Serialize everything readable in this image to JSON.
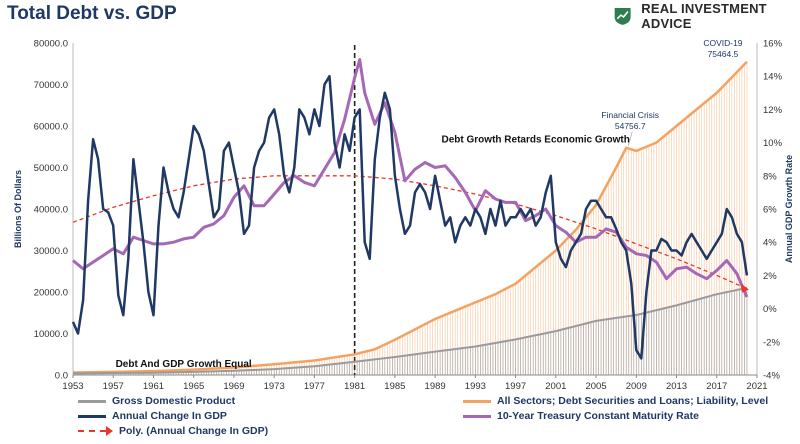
{
  "title": "Total Debt vs. GDP",
  "brand": {
    "name": "REAL INVESTMENT ADVICE",
    "logo_icon": "shield-chart-icon",
    "logo_color": "#2e7d4f"
  },
  "colors": {
    "gdp": "#9a9a9a",
    "debt": "#f4a261",
    "gdp_growth": "#1f3864",
    "treasury": "#a568b4",
    "poly": "#e8382a"
  },
  "chart_data": {
    "type": "area",
    "title": "Total Debt vs. GDP",
    "ylabel": "Billions Of Dollars",
    "ylabel_right": "Annual GDP Growth Rate",
    "xlim": [
      1953,
      2021
    ],
    "ylim": [
      0,
      80000
    ],
    "ylim_right": [
      -4,
      16
    ],
    "x_ticks": [
      "1953",
      "1957",
      "1961",
      "1965",
      "1969",
      "1973",
      "1977",
      "1981",
      "1985",
      "1989",
      "1993",
      "1997",
      "2001",
      "2005",
      "2009",
      "2013",
      "2017",
      "2021"
    ],
    "y_ticks": [
      "0.0",
      "10000.0",
      "20000.0",
      "30000.0",
      "40000.0",
      "50000.0",
      "60000.0",
      "70000.0",
      "80000.0"
    ],
    "y_ticks_right": [
      "-4%",
      "-2%",
      "0%",
      "2%",
      "4%",
      "6%",
      "8%",
      "10%",
      "12%",
      "14%",
      "16%"
    ],
    "series": [
      {
        "name": "Gross Domestic Product",
        "axis": "left",
        "style": "area",
        "x": [
          1953,
          1957,
          1961,
          1965,
          1969,
          1973,
          1977,
          1981,
          1985,
          1989,
          1993,
          1997,
          2001,
          2005,
          2009,
          2013,
          2017,
          2020
        ],
        "values": [
          390,
          475,
          545,
          740,
          1020,
          1430,
          2090,
          3210,
          4340,
          5640,
          6860,
          8580,
          10580,
          13040,
          14450,
          16780,
          19480,
          21000
        ]
      },
      {
        "name": "All Sectors; Debt Securities and Loans; Liability, Level",
        "axis": "left",
        "style": "area",
        "x": [
          1953,
          1957,
          1961,
          1965,
          1969,
          1973,
          1977,
          1981,
          1983,
          1985,
          1987,
          1989,
          1991,
          1993,
          1995,
          1997,
          1999,
          2001,
          2003,
          2005,
          2007,
          2008,
          2009,
          2011,
          2013,
          2015,
          2017,
          2019,
          2020
        ],
        "values": [
          600,
          750,
          950,
          1300,
          1800,
          2600,
          3500,
          5000,
          6200,
          8500,
          11000,
          13500,
          15500,
          17500,
          19500,
          22000,
          26000,
          30000,
          35000,
          41000,
          50000,
          54756.7,
          54000,
          56000,
          60000,
          64000,
          68000,
          73000,
          75464.5
        ]
      },
      {
        "name": "Annual Change In GDP",
        "axis": "right",
        "style": "line",
        "x": [
          1953.0,
          1953.5,
          1954.0,
          1954.5,
          1955.0,
          1955.5,
          1956.0,
          1956.5,
          1957.0,
          1957.5,
          1958.0,
          1958.5,
          1959.0,
          1959.5,
          1960.0,
          1960.5,
          1961.0,
          1961.5,
          1962.0,
          1962.5,
          1963.0,
          1963.5,
          1964.0,
          1964.5,
          1965.0,
          1965.5,
          1966.0,
          1966.5,
          1967.0,
          1967.5,
          1968.0,
          1968.5,
          1969.0,
          1969.5,
          1970.0,
          1970.5,
          1971.0,
          1971.5,
          1972.0,
          1972.5,
          1973.0,
          1973.5,
          1974.0,
          1974.5,
          1975.0,
          1975.5,
          1976.0,
          1976.5,
          1977.0,
          1977.5,
          1978.0,
          1978.5,
          1979.0,
          1979.5,
          1980.0,
          1980.5,
          1981.0,
          1981.5,
          1982.0,
          1982.5,
          1983.0,
          1983.5,
          1984.0,
          1984.5,
          1985.0,
          1985.5,
          1986.0,
          1986.5,
          1987.0,
          1987.5,
          1988.0,
          1988.5,
          1989.0,
          1989.5,
          1990.0,
          1990.5,
          1991.0,
          1991.5,
          1992.0,
          1992.5,
          1993.0,
          1993.5,
          1994.0,
          1994.5,
          1995.0,
          1995.5,
          1996.0,
          1996.5,
          1997.0,
          1997.5,
          1998.0,
          1998.5,
          1999.0,
          1999.5,
          2000.0,
          2000.5,
          2001.0,
          2001.5,
          2002.0,
          2002.5,
          2003.0,
          2003.5,
          2004.0,
          2004.5,
          2005.0,
          2005.5,
          2006.0,
          2006.5,
          2007.0,
          2007.5,
          2008.0,
          2008.5,
          2009.0,
          2009.5,
          2010.0,
          2010.5,
          2011.0,
          2011.5,
          2012.0,
          2012.5,
          2013.0,
          2013.5,
          2014.0,
          2014.5,
          2015.0,
          2015.5,
          2016.0,
          2016.5,
          2017.0,
          2017.5,
          2018.0,
          2018.5,
          2019.0,
          2019.5,
          2020.0
        ],
        "values": [
          -0.8,
          -1.5,
          0.5,
          6.5,
          10.2,
          9.0,
          6.0,
          5.8,
          5.0,
          0.8,
          -0.4,
          3.0,
          9.0,
          6.5,
          4.0,
          1.0,
          -0.4,
          5.0,
          8.5,
          7.0,
          6.0,
          5.5,
          7.0,
          9.0,
          11.0,
          10.5,
          9.5,
          7.5,
          5.5,
          6.0,
          9.5,
          10.0,
          8.5,
          7.0,
          4.5,
          5.0,
          8.5,
          9.5,
          10.0,
          11.5,
          12.0,
          10.5,
          8.0,
          7.0,
          8.5,
          12.0,
          11.5,
          10.5,
          12.0,
          11.0,
          13.5,
          14.0,
          10.0,
          8.5,
          10.5,
          9.5,
          11.5,
          12.0,
          4.0,
          3.0,
          9.0,
          11.5,
          13.0,
          12.0,
          8.0,
          6.0,
          4.5,
          5.0,
          7.0,
          7.5,
          7.0,
          6.0,
          8.0,
          6.5,
          5.0,
          5.5,
          4.0,
          5.0,
          5.5,
          5.0,
          6.0,
          5.5,
          4.5,
          6.0,
          5.0,
          6.5,
          5.0,
          5.5,
          5.5,
          6.0,
          5.5,
          6.0,
          5.0,
          5.5,
          7.0,
          8.0,
          4.0,
          3.0,
          2.5,
          3.5,
          4.0,
          4.5,
          6.0,
          6.5,
          6.5,
          6.0,
          5.5,
          5.5,
          4.8,
          4.0,
          3.5,
          1.5,
          -2.5,
          -3.0,
          1.0,
          3.5,
          3.5,
          4.2,
          4.0,
          3.5,
          3.5,
          3.2,
          4.0,
          4.5,
          4.0,
          3.5,
          3.0,
          3.5,
          4.0,
          4.5,
          6.0,
          5.5,
          4.5,
          4.0,
          2.0
        ]
      },
      {
        "name": "10-Year Treasury Constant Maturity Rate",
        "axis": "right",
        "style": "line",
        "x": [
          1953,
          1954,
          1955,
          1956,
          1957,
          1958,
          1959,
          1960,
          1961,
          1962,
          1963,
          1964,
          1965,
          1966,
          1967,
          1968,
          1969,
          1970,
          1971,
          1972,
          1973,
          1974,
          1975,
          1976,
          1977,
          1978,
          1979,
          1980,
          1981,
          1981.5,
          1982,
          1983,
          1984,
          1985,
          1986,
          1987,
          1988,
          1989,
          1990,
          1991,
          1992,
          1993,
          1994,
          1995,
          1996,
          1997,
          1998,
          1999,
          2000,
          2001,
          2002,
          2003,
          2004,
          2005,
          2006,
          2007,
          2008,
          2009,
          2010,
          2011,
          2012,
          2013,
          2014,
          2015,
          2016,
          2017,
          2018,
          2019,
          2020
        ],
        "values": [
          2.9,
          2.4,
          2.8,
          3.2,
          3.6,
          3.3,
          4.3,
          4.1,
          3.9,
          3.9,
          4.0,
          4.2,
          4.3,
          4.9,
          5.1,
          5.6,
          6.7,
          7.4,
          6.2,
          6.2,
          6.9,
          7.6,
          8.0,
          7.6,
          7.4,
          8.4,
          9.4,
          11.4,
          13.9,
          15.0,
          13.0,
          11.1,
          12.4,
          10.6,
          7.7,
          8.4,
          8.8,
          8.5,
          8.6,
          7.9,
          7.0,
          5.9,
          7.1,
          6.6,
          6.4,
          6.4,
          5.3,
          5.6,
          6.0,
          5.0,
          4.6,
          4.0,
          4.3,
          4.3,
          4.8,
          4.6,
          3.7,
          3.3,
          3.2,
          2.8,
          1.8,
          2.4,
          2.5,
          2.1,
          1.8,
          2.3,
          2.9,
          2.1,
          0.7
        ]
      },
      {
        "name": "Poly. (Annual Change In GDP)",
        "axis": "right",
        "style": "dashed",
        "x": [
          1953,
          1957,
          1961,
          1965,
          1969,
          1973,
          1977,
          1981,
          1985,
          1989,
          1993,
          1997,
          2001,
          2005,
          2009,
          2013,
          2017,
          2020
        ],
        "values": [
          5.2,
          6.1,
          6.8,
          7.4,
          7.8,
          8.0,
          8.0,
          8.0,
          7.8,
          7.4,
          6.9,
          6.3,
          5.6,
          4.8,
          3.9,
          3.0,
          2.0,
          1.2
        ]
      }
    ],
    "annotations": [
      {
        "text": "Debt Growth Retards Economic Growth",
        "x": 1999,
        "y_right": 10
      },
      {
        "text": "Debt And GDP Growth Equal",
        "x": 1964,
        "y_left": 1000
      },
      {
        "text": "Financial Crisis",
        "value_text": "54756.7",
        "x": 2008
      },
      {
        "text": "COVID-19",
        "value_text": "75464.5",
        "x": 2020
      }
    ],
    "vertical_marker_x": 1981,
    "legend_placement": "bottom"
  },
  "legend": [
    {
      "label": "Gross Domestic Product"
    },
    {
      "label": "All Sectors; Debt Securities and Loans; Liability, Level"
    },
    {
      "label": "Annual Change In GDP"
    },
    {
      "label": "10-Year Treasury Constant Maturity Rate"
    },
    {
      "label": "Poly. (Annual Change In GDP)"
    }
  ]
}
